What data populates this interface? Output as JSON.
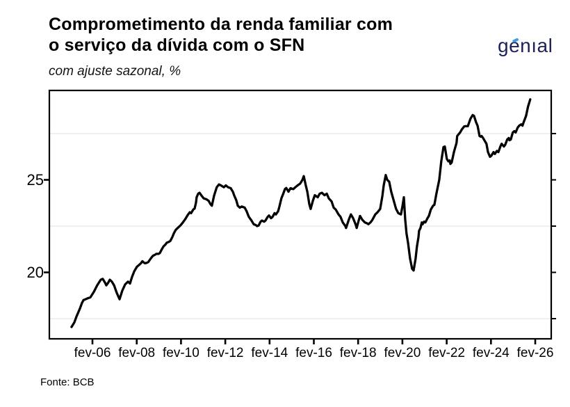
{
  "header": {
    "title_line1": "Comprometimento da renda familiar com",
    "title_line2": "o serviço da dívida com o SFN",
    "subtitle": "com ajuste sazonal, %",
    "logo_text": "genıal"
  },
  "footer": {
    "source": "Fonte: BCB"
  },
  "colors": {
    "line": "#000000",
    "axis": "#000000",
    "tick_label": "#000000",
    "gridline_minor": "#ececec",
    "logo_navy": "#1d2157",
    "logo_accent": "#3d9be9",
    "background": "#ffffff"
  },
  "chart_data": {
    "type": "line",
    "title": "Comprometimento da renda familiar com o serviço da dívida com o SFN",
    "subtitle": "com ajuste sazonal, %",
    "source": "Fonte: BCB",
    "xlabel": "",
    "ylabel": "",
    "legend": "none",
    "grid": "minor horizontal only",
    "xlim": [
      2004.2,
      2026.85
    ],
    "ylim": [
      16.4,
      29.85
    ],
    "x_ticks": [
      {
        "label": "fev-06",
        "year": 2006.125
      },
      {
        "label": "fev-08",
        "year": 2008.125
      },
      {
        "label": "fev-10",
        "year": 2010.125
      },
      {
        "label": "fev-12",
        "year": 2012.125
      },
      {
        "label": "fev-14",
        "year": 2014.125
      },
      {
        "label": "fev-16",
        "year": 2016.125
      },
      {
        "label": "fev-18",
        "year": 2018.125
      },
      {
        "label": "fev-20",
        "year": 2020.125
      },
      {
        "label": "fev-22",
        "year": 2022.125
      },
      {
        "label": "fev-24",
        "year": 2024.125
      },
      {
        "label": "fev-26",
        "year": 2026.125
      }
    ],
    "y_ticks": [
      20,
      25
    ],
    "y_minor_gridlines": [
      17.5,
      22.5,
      27.5
    ],
    "y_right_ticks": [
      17.5,
      20,
      22.5,
      25,
      27.5
    ],
    "series": [
      {
        "name": "Comprometimento da renda familiar (com ajuste sazonal, %)",
        "points": [
          [
            2005.18,
            17.05
          ],
          [
            2005.31,
            17.3
          ],
          [
            2005.4,
            17.6
          ],
          [
            2005.56,
            18.05
          ],
          [
            2005.65,
            18.35
          ],
          [
            2005.72,
            18.5
          ],
          [
            2005.81,
            18.55
          ],
          [
            2005.91,
            18.6
          ],
          [
            2006.03,
            18.65
          ],
          [
            2006.19,
            18.95
          ],
          [
            2006.34,
            19.3
          ],
          [
            2006.5,
            19.6
          ],
          [
            2006.59,
            19.65
          ],
          [
            2006.69,
            19.45
          ],
          [
            2006.75,
            19.3
          ],
          [
            2006.84,
            19.45
          ],
          [
            2006.91,
            19.6
          ],
          [
            2007.0,
            19.5
          ],
          [
            2007.1,
            19.3
          ],
          [
            2007.22,
            18.9
          ],
          [
            2007.35,
            18.55
          ],
          [
            2007.47,
            19.0
          ],
          [
            2007.6,
            19.35
          ],
          [
            2007.73,
            19.5
          ],
          [
            2007.82,
            19.4
          ],
          [
            2007.91,
            19.75
          ],
          [
            2008.01,
            20.05
          ],
          [
            2008.13,
            20.3
          ],
          [
            2008.23,
            20.4
          ],
          [
            2008.32,
            20.5
          ],
          [
            2008.38,
            20.6
          ],
          [
            2008.48,
            20.5
          ],
          [
            2008.54,
            20.5
          ],
          [
            2008.64,
            20.55
          ],
          [
            2008.7,
            20.65
          ],
          [
            2008.79,
            20.8
          ],
          [
            2008.86,
            20.9
          ],
          [
            2008.95,
            20.95
          ],
          [
            2009.01,
            21.0
          ],
          [
            2009.11,
            21.0
          ],
          [
            2009.17,
            21.05
          ],
          [
            2009.26,
            21.25
          ],
          [
            2009.33,
            21.4
          ],
          [
            2009.42,
            21.5
          ],
          [
            2009.48,
            21.6
          ],
          [
            2009.58,
            21.65
          ],
          [
            2009.64,
            21.7
          ],
          [
            2009.73,
            21.9
          ],
          [
            2009.8,
            22.1
          ],
          [
            2009.89,
            22.3
          ],
          [
            2010.02,
            22.45
          ],
          [
            2010.11,
            22.55
          ],
          [
            2010.21,
            22.7
          ],
          [
            2010.33,
            22.9
          ],
          [
            2010.43,
            23.1
          ],
          [
            2010.52,
            23.25
          ],
          [
            2010.58,
            23.2
          ],
          [
            2010.68,
            23.4
          ],
          [
            2010.74,
            23.45
          ],
          [
            2010.8,
            23.76
          ],
          [
            2010.83,
            24.06
          ],
          [
            2010.9,
            24.25
          ],
          [
            2010.96,
            24.3
          ],
          [
            2011.05,
            24.15
          ],
          [
            2011.15,
            24.0
          ],
          [
            2011.27,
            23.95
          ],
          [
            2011.37,
            23.87
          ],
          [
            2011.46,
            23.68
          ],
          [
            2011.52,
            23.6
          ],
          [
            2011.62,
            24.15
          ],
          [
            2011.74,
            24.6
          ],
          [
            2011.84,
            24.75
          ],
          [
            2011.93,
            24.7
          ],
          [
            2012.06,
            24.6
          ],
          [
            2012.15,
            24.7
          ],
          [
            2012.25,
            24.6
          ],
          [
            2012.37,
            24.55
          ],
          [
            2012.47,
            24.35
          ],
          [
            2012.53,
            24.15
          ],
          [
            2012.62,
            23.9
          ],
          [
            2012.69,
            23.6
          ],
          [
            2012.78,
            23.5
          ],
          [
            2012.87,
            23.56
          ],
          [
            2013.0,
            23.5
          ],
          [
            2013.09,
            23.3
          ],
          [
            2013.19,
            23.0
          ],
          [
            2013.31,
            22.8
          ],
          [
            2013.41,
            22.6
          ],
          [
            2013.5,
            22.56
          ],
          [
            2013.56,
            22.5
          ],
          [
            2013.63,
            22.53
          ],
          [
            2013.72,
            22.74
          ],
          [
            2013.78,
            22.8
          ],
          [
            2013.88,
            22.74
          ],
          [
            2013.94,
            22.8
          ],
          [
            2014.04,
            23.0
          ],
          [
            2014.1,
            23.07
          ],
          [
            2014.19,
            22.93
          ],
          [
            2014.26,
            23.0
          ],
          [
            2014.35,
            23.2
          ],
          [
            2014.41,
            23.13
          ],
          [
            2014.51,
            23.3
          ],
          [
            2014.57,
            23.56
          ],
          [
            2014.66,
            24.0
          ],
          [
            2014.76,
            24.3
          ],
          [
            2014.82,
            24.5
          ],
          [
            2014.88,
            24.56
          ],
          [
            2014.98,
            24.36
          ],
          [
            2015.07,
            24.55
          ],
          [
            2015.2,
            24.5
          ],
          [
            2015.29,
            24.6
          ],
          [
            2015.39,
            24.7
          ],
          [
            2015.51,
            24.8
          ],
          [
            2015.61,
            25.0
          ],
          [
            2015.67,
            25.2
          ],
          [
            2015.76,
            24.7
          ],
          [
            2015.83,
            24.36
          ],
          [
            2015.92,
            23.68
          ],
          [
            2015.98,
            23.43
          ],
          [
            2016.08,
            23.87
          ],
          [
            2016.17,
            24.17
          ],
          [
            2016.3,
            24.06
          ],
          [
            2016.39,
            24.25
          ],
          [
            2016.49,
            24.3
          ],
          [
            2016.61,
            24.17
          ],
          [
            2016.71,
            24.25
          ],
          [
            2016.8,
            24.0
          ],
          [
            2016.93,
            23.83
          ],
          [
            2017.02,
            23.5
          ],
          [
            2017.11,
            23.4
          ],
          [
            2017.24,
            23.13
          ],
          [
            2017.33,
            23.0
          ],
          [
            2017.43,
            22.7
          ],
          [
            2017.55,
            22.5
          ],
          [
            2017.58,
            22.4
          ],
          [
            2017.71,
            22.87
          ],
          [
            2017.8,
            23.13
          ],
          [
            2017.9,
            22.93
          ],
          [
            2018.02,
            22.56
          ],
          [
            2018.06,
            22.4
          ],
          [
            2018.15,
            22.8
          ],
          [
            2018.21,
            23.05
          ],
          [
            2018.31,
            22.85
          ],
          [
            2018.43,
            22.7
          ],
          [
            2018.53,
            22.65
          ],
          [
            2018.59,
            22.6
          ],
          [
            2018.68,
            22.7
          ],
          [
            2018.75,
            22.8
          ],
          [
            2018.84,
            23.0
          ],
          [
            2018.9,
            23.13
          ],
          [
            2019.0,
            23.25
          ],
          [
            2019.12,
            23.43
          ],
          [
            2019.22,
            24.13
          ],
          [
            2019.28,
            24.7
          ],
          [
            2019.37,
            25.26
          ],
          [
            2019.44,
            25.0
          ],
          [
            2019.53,
            24.9
          ],
          [
            2019.62,
            24.36
          ],
          [
            2019.75,
            23.8
          ],
          [
            2019.84,
            23.43
          ],
          [
            2019.94,
            23.2
          ],
          [
            2020.06,
            23.13
          ],
          [
            2020.13,
            23.6
          ],
          [
            2020.19,
            24.06
          ],
          [
            2020.25,
            22.87
          ],
          [
            2020.31,
            22.1
          ],
          [
            2020.38,
            21.6
          ],
          [
            2020.47,
            20.75
          ],
          [
            2020.53,
            20.4
          ],
          [
            2020.56,
            20.2
          ],
          [
            2020.63,
            20.1
          ],
          [
            2020.72,
            20.75
          ],
          [
            2020.78,
            21.4
          ],
          [
            2020.85,
            21.9
          ],
          [
            2020.88,
            22.25
          ],
          [
            2020.94,
            22.4
          ],
          [
            2021.0,
            22.7
          ],
          [
            2021.04,
            22.6
          ],
          [
            2021.1,
            22.74
          ],
          [
            2021.16,
            22.7
          ],
          [
            2021.26,
            22.93
          ],
          [
            2021.32,
            23.05
          ],
          [
            2021.41,
            23.4
          ],
          [
            2021.51,
            23.6
          ],
          [
            2021.57,
            23.65
          ],
          [
            2021.66,
            24.25
          ],
          [
            2021.79,
            25.0
          ],
          [
            2021.88,
            26.0
          ],
          [
            2021.98,
            26.77
          ],
          [
            2022.04,
            26.8
          ],
          [
            2022.13,
            26.13
          ],
          [
            2022.2,
            26.0
          ],
          [
            2022.26,
            26.05
          ],
          [
            2022.29,
            25.86
          ],
          [
            2022.35,
            25.94
          ],
          [
            2022.45,
            26.5
          ],
          [
            2022.57,
            27.0
          ],
          [
            2022.6,
            27.37
          ],
          [
            2022.73,
            27.56
          ],
          [
            2022.82,
            27.74
          ],
          [
            2022.92,
            27.89
          ],
          [
            2022.98,
            27.9
          ],
          [
            2023.08,
            27.9
          ],
          [
            2023.2,
            28.3
          ],
          [
            2023.3,
            28.5
          ],
          [
            2023.36,
            28.46
          ],
          [
            2023.45,
            28.12
          ],
          [
            2023.52,
            27.93
          ],
          [
            2023.61,
            27.37
          ],
          [
            2023.67,
            27.33
          ],
          [
            2023.7,
            27.37
          ],
          [
            2023.77,
            27.26
          ],
          [
            2023.86,
            27.07
          ],
          [
            2023.92,
            26.95
          ],
          [
            2023.99,
            26.5
          ],
          [
            2024.08,
            26.25
          ],
          [
            2024.14,
            26.3
          ],
          [
            2024.24,
            26.5
          ],
          [
            2024.3,
            26.4
          ],
          [
            2024.39,
            26.56
          ],
          [
            2024.46,
            26.5
          ],
          [
            2024.55,
            26.8
          ],
          [
            2024.61,
            26.95
          ],
          [
            2024.71,
            26.8
          ],
          [
            2024.77,
            26.9
          ],
          [
            2024.86,
            27.18
          ],
          [
            2024.93,
            27.26
          ],
          [
            2024.96,
            27.14
          ],
          [
            2025.02,
            27.18
          ],
          [
            2025.11,
            27.56
          ],
          [
            2025.18,
            27.63
          ],
          [
            2025.24,
            27.56
          ],
          [
            2025.33,
            27.82
          ],
          [
            2025.4,
            27.93
          ],
          [
            2025.49,
            28.0
          ],
          [
            2025.55,
            27.93
          ],
          [
            2025.59,
            28.08
          ],
          [
            2025.65,
            28.27
          ],
          [
            2025.71,
            28.46
          ],
          [
            2025.8,
            28.95
          ],
          [
            2025.9,
            29.35
          ]
        ]
      }
    ]
  }
}
